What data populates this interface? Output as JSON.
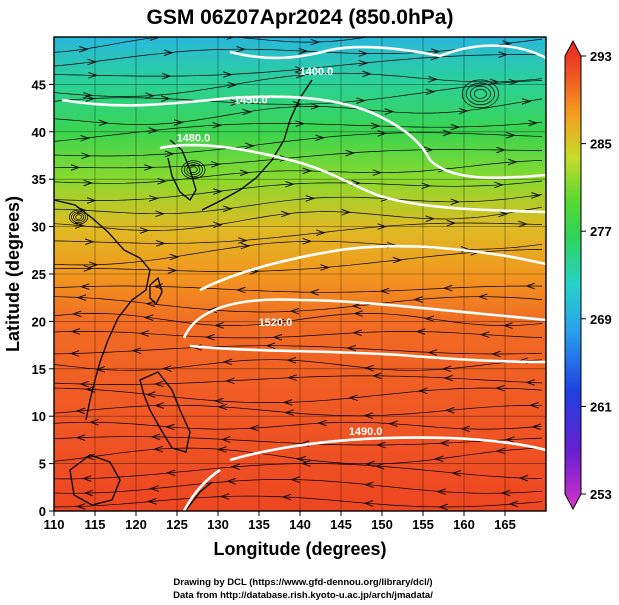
{
  "chart_data": {
    "type": "heatmap",
    "title": "GSM 06Z07Apr2024 (850.0hPa)",
    "xlabel": "Longitude (degrees)",
    "ylabel": "Latitude  (degrees)",
    "xlim": [
      110,
      170
    ],
    "ylim": [
      0,
      50
    ],
    "xticks": [
      "110",
      "115",
      "120",
      "125",
      "130",
      "135",
      "140",
      "145",
      "150",
      "155",
      "160",
      "165"
    ],
    "yticks": [
      "0",
      "5",
      "10",
      "15",
      "20",
      "25",
      "30",
      "35",
      "40",
      "45"
    ],
    "colorbar": {
      "range": [
        253,
        293
      ],
      "ticks": [
        "293",
        "285",
        "277",
        "269",
        "261",
        "253"
      ]
    },
    "field_bands": [
      {
        "lat": 0,
        "value": 291
      },
      {
        "lat": 10,
        "value": 290
      },
      {
        "lat": 20,
        "value": 289
      },
      {
        "lat": 25,
        "value": 287
      },
      {
        "lat": 30,
        "value": 285
      },
      {
        "lat": 35,
        "value": 281
      },
      {
        "lat": 40,
        "value": 277
      },
      {
        "lat": 45,
        "value": 274
      },
      {
        "lat": 50,
        "value": 270
      }
    ],
    "contour_labels": [
      {
        "text": "1400.0",
        "lon": 142,
        "lat": 46
      },
      {
        "text": "1450.0",
        "lon": 134,
        "lat": 43
      },
      {
        "text": "1480.0",
        "lon": 127,
        "lat": 39
      },
      {
        "text": "1520.0",
        "lon": 137,
        "lat": 19.5
      },
      {
        "text": "1490.0",
        "lon": 148,
        "lat": 8
      }
    ],
    "grid": true
  },
  "credits": {
    "line1": "Drawing by DCL (https://www.gfd-dennou.org/library/dcl/)",
    "line2": "Data from http://database.rish.kyoto-u.ac.jp/arch/jmadata/"
  },
  "colors": {
    "background": "#ffffff",
    "contour": "#ffffff",
    "streamline": "#000000"
  }
}
